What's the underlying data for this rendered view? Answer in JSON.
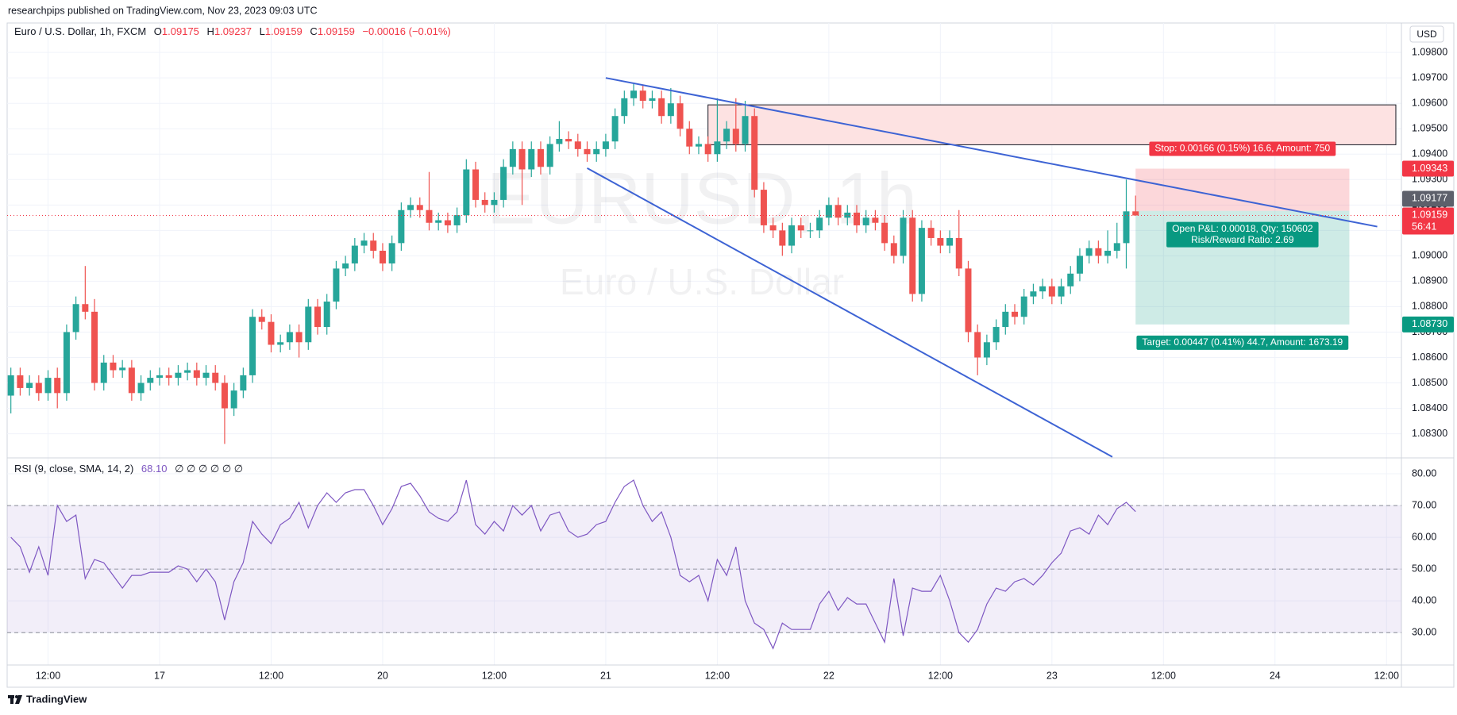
{
  "header": "researchpips published on TradingView.com, Nov 23, 2023 09:03 UTC",
  "footer": "TradingView",
  "chart_data": {
    "type": "candlestick",
    "symbol": "Euro / U.S. Dollar, 1h, FXCM",
    "legend": [
      {
        "key": "O",
        "value": "1.09175"
      },
      {
        "key": "H",
        "value": "1.09237"
      },
      {
        "key": "L",
        "value": "1.09159"
      },
      {
        "key": "C",
        "value": "1.09159"
      }
    ],
    "change": "−0.00016 (−0.01%)",
    "watermark": "EURUSD, 1h",
    "watermark_subtitle": "Euro / U.S. Dollar",
    "currency": "USD",
    "colors": {
      "up": "#26a69a",
      "down": "#ef5350"
    },
    "open": [
      1.0845,
      1.0853,
      1.0848,
      1.085,
      1.0846,
      1.0852,
      1.0846,
      1.087,
      1.0881,
      1.0878,
      1.085,
      1.0858,
      1.0855,
      1.0856,
      1.0846,
      1.085,
      1.0852,
      1.0853,
      1.0852,
      1.0854,
      1.0855,
      1.0852,
      1.0854,
      1.085,
      1.084,
      1.0847,
      1.0853,
      1.0876,
      1.0874,
      1.0865,
      1.0866,
      1.087,
      1.0866,
      1.088,
      1.0872,
      1.0882,
      1.0895,
      1.0897,
      1.0904,
      1.0906,
      1.0902,
      1.0897,
      1.0905,
      1.0918,
      1.092,
      1.0918,
      1.0913,
      1.0914,
      1.0912,
      1.0916,
      1.0934,
      1.0922,
      1.092,
      1.0922,
      1.0935,
      1.0942,
      1.0934,
      1.0942,
      1.0935,
      1.0944,
      1.0946,
      1.0945,
      1.0942,
      1.094,
      1.0942,
      1.0945,
      1.0955,
      1.0962,
      1.0965,
      1.0961,
      1.0962,
      1.0955,
      1.096,
      1.095,
      1.0943,
      1.0944,
      1.094,
      1.0945,
      1.095,
      1.0944,
      1.0955,
      1.0926,
      1.0912,
      1.091,
      1.0904,
      1.0912,
      1.091,
      1.091,
      1.0915,
      1.092,
      1.0915,
      1.0917,
      1.0912,
      1.0915,
      1.0913,
      1.0905,
      1.09,
      1.0915,
      1.0885,
      1.0911,
      1.0907,
      1.0904,
      1.0907,
      1.0895,
      1.087,
      1.086,
      1.0866,
      1.0872,
      1.0878,
      1.0876,
      1.0884,
      1.0886,
      1.0888,
      1.0884,
      1.0888,
      1.0893,
      1.09,
      1.0903,
      1.09,
      1.0902,
      1.0905,
      1.09175
    ],
    "high": [
      1.0856,
      1.0856,
      1.0853,
      1.0853,
      1.0855,
      1.0856,
      1.0873,
      1.0884,
      1.0896,
      1.0883,
      1.0861,
      1.0861,
      1.0859,
      1.0859,
      1.0853,
      1.0855,
      1.0856,
      1.0856,
      1.0857,
      1.0858,
      1.0858,
      1.0857,
      1.0857,
      1.0853,
      1.085,
      1.0856,
      1.0879,
      1.0879,
      1.0877,
      1.0869,
      1.0873,
      1.0873,
      1.0883,
      1.0883,
      1.0885,
      1.0898,
      1.09,
      1.0907,
      1.0909,
      1.0909,
      1.0905,
      1.0908,
      1.0921,
      1.0923,
      1.0923,
      1.0933,
      1.0917,
      1.0917,
      1.0919,
      1.0938,
      1.0937,
      1.0925,
      1.0925,
      1.0938,
      1.0945,
      1.0945,
      1.0945,
      1.0945,
      1.0947,
      1.0953,
      1.0949,
      1.0948,
      1.0945,
      1.0945,
      1.0948,
      1.0958,
      1.0965,
      1.0968,
      1.0967,
      1.0965,
      1.0965,
      1.0966,
      1.0963,
      1.0953,
      1.0947,
      1.0947,
      1.0962,
      1.0953,
      1.0962,
      1.0961,
      1.0958,
      1.0929,
      1.0915,
      1.0913,
      1.0915,
      1.0915,
      1.0913,
      1.0918,
      1.0923,
      1.0923,
      1.092,
      1.092,
      1.0918,
      1.0918,
      1.0916,
      1.0908,
      1.0918,
      1.0918,
      1.0914,
      1.0914,
      1.091,
      1.091,
      1.0918,
      1.0898,
      1.0873,
      1.0869,
      1.0875,
      1.0881,
      1.0881,
      1.0887,
      1.0889,
      1.0891,
      1.0891,
      1.0891,
      1.0896,
      1.0903,
      1.0906,
      1.0906,
      1.091,
      1.0913,
      1.093,
      1.09237
    ],
    "low": [
      1.0838,
      1.0845,
      1.0845,
      1.0843,
      1.0843,
      1.084,
      1.0843,
      1.0867,
      1.0875,
      1.0847,
      1.0847,
      1.0852,
      1.0852,
      1.0843,
      1.0843,
      1.0847,
      1.0849,
      1.0849,
      1.0849,
      1.0851,
      1.0849,
      1.0849,
      1.0847,
      1.0826,
      1.0837,
      1.0844,
      1.085,
      1.0871,
      1.0862,
      1.0862,
      1.0863,
      1.086,
      1.0863,
      1.0869,
      1.0869,
      1.0879,
      1.0892,
      1.0894,
      1.0901,
      1.0899,
      1.0894,
      1.0894,
      1.0902,
      1.0915,
      1.0915,
      1.091,
      1.091,
      1.0909,
      1.0909,
      1.0913,
      1.0919,
      1.0917,
      1.0917,
      1.0919,
      1.0932,
      1.092,
      1.0931,
      1.0932,
      1.0932,
      1.0941,
      1.0942,
      1.0939,
      1.0937,
      1.0937,
      1.0939,
      1.0942,
      1.0952,
      1.0959,
      1.0958,
      1.0958,
      1.0952,
      1.0952,
      1.0947,
      1.094,
      1.094,
      1.0937,
      1.0937,
      1.0942,
      1.0941,
      1.0941,
      1.0923,
      1.0909,
      1.0907,
      1.09,
      1.0901,
      1.0907,
      1.0907,
      1.0907,
      1.0912,
      1.0912,
      1.0912,
      1.0909,
      1.0909,
      1.091,
      1.0902,
      1.0897,
      1.0897,
      1.0882,
      1.0882,
      1.0904,
      1.0901,
      1.0901,
      1.0892,
      1.0866,
      1.0853,
      1.0857,
      1.0863,
      1.0869,
      1.0873,
      1.0873,
      1.0881,
      1.0883,
      1.0881,
      1.0881,
      1.0885,
      1.089,
      1.0897,
      1.0897,
      1.0897,
      1.0899,
      1.0895,
      1.09159
    ],
    "close": [
      1.0853,
      1.0848,
      1.085,
      1.0846,
      1.0852,
      1.0846,
      1.087,
      1.0881,
      1.0878,
      1.085,
      1.0858,
      1.0855,
      1.0856,
      1.0846,
      1.085,
      1.0852,
      1.0853,
      1.0852,
      1.0854,
      1.0855,
      1.0852,
      1.0854,
      1.085,
      1.084,
      1.0847,
      1.0853,
      1.0876,
      1.0874,
      1.0865,
      1.0866,
      1.087,
      1.0866,
      1.088,
      1.0872,
      1.0882,
      1.0895,
      1.0897,
      1.0904,
      1.0906,
      1.0902,
      1.0897,
      1.0905,
      1.0918,
      1.092,
      1.0918,
      1.0913,
      1.0914,
      1.0912,
      1.0916,
      1.0934,
      1.0922,
      1.092,
      1.0922,
      1.0935,
      1.0942,
      1.0934,
      1.0942,
      1.0935,
      1.0944,
      1.0946,
      1.0945,
      1.0942,
      1.094,
      1.0942,
      1.0945,
      1.0955,
      1.0962,
      1.0965,
      1.0961,
      1.0962,
      1.0955,
      1.096,
      1.095,
      1.0943,
      1.0944,
      1.094,
      1.0945,
      1.095,
      1.0944,
      1.0955,
      1.0926,
      1.0912,
      1.091,
      1.0904,
      1.0912,
      1.091,
      1.091,
      1.0915,
      1.092,
      1.0915,
      1.0917,
      1.0912,
      1.0915,
      1.0913,
      1.0905,
      1.09,
      1.0915,
      1.0885,
      1.0911,
      1.0907,
      1.0904,
      1.0907,
      1.0895,
      1.087,
      1.086,
      1.0866,
      1.0872,
      1.0878,
      1.0876,
      1.0884,
      1.0886,
      1.0888,
      1.0884,
      1.0888,
      1.0893,
      1.09,
      1.0903,
      1.09,
      1.0902,
      1.0905,
      1.09175,
      1.09159
    ],
    "xlim": [
      -0.4,
      149.6
    ],
    "xticks": [
      {
        "value": 4,
        "label": "12:00"
      },
      {
        "value": 16,
        "label": "17"
      },
      {
        "value": 28,
        "label": "12:00"
      },
      {
        "value": 40,
        "label": "20"
      },
      {
        "value": 52,
        "label": "12:00"
      },
      {
        "value": 64,
        "label": "21"
      },
      {
        "value": 76,
        "label": "12:00"
      },
      {
        "value": 88,
        "label": "22"
      },
      {
        "value": 100,
        "label": "12:00"
      },
      {
        "value": 112,
        "label": "23"
      },
      {
        "value": 124,
        "label": "12:00"
      },
      {
        "value": 136,
        "label": "24"
      },
      {
        "value": 148,
        "label": "12:00"
      }
    ],
    "ylim": [
      1.08205,
      1.09916
    ],
    "yticks": [
      {
        "value": 1.098,
        "label": "1.09800"
      },
      {
        "value": 1.097,
        "label": "1.09700"
      },
      {
        "value": 1.096,
        "label": "1.09600"
      },
      {
        "value": 1.095,
        "label": "1.09500"
      },
      {
        "value": 1.094,
        "label": "1.09400"
      },
      {
        "value": 1.093,
        "label": "1.09300"
      },
      {
        "value": 1.092,
        "label": "1.09200"
      },
      {
        "value": 1.091,
        "label": "1.09100"
      },
      {
        "value": 1.09,
        "label": "1.09000"
      },
      {
        "value": 1.089,
        "label": "1.08900"
      },
      {
        "value": 1.088,
        "label": "1.08800"
      },
      {
        "value": 1.087,
        "label": "1.08700"
      },
      {
        "value": 1.086,
        "label": "1.08600"
      },
      {
        "value": 1.085,
        "label": "1.08500"
      },
      {
        "value": 1.084,
        "label": "1.08400"
      },
      {
        "value": 1.083,
        "label": "1.08300"
      }
    ],
    "grid": true,
    "trendlines": [
      {
        "color": "#3d63d4",
        "points": [
          [
            64,
            1.097
          ],
          [
            147,
            1.09115
          ]
        ]
      },
      {
        "color": "#3d63d4",
        "points": [
          [
            62,
            1.09345
          ],
          [
            118.5,
            1.08209
          ]
        ]
      }
    ],
    "zone": {
      "x": [
        75,
        149
      ],
      "y": [
        1.09437,
        1.09594
      ],
      "color": "#fde2e2"
    },
    "position": {
      "x": [
        121,
        144
      ],
      "entry": 1.09177,
      "stop": 1.09343,
      "target": 1.0873,
      "stop_label": "Stop: 0.00166 (0.15%) 16.6, Amount: 750",
      "pnl_label": "Open P&L: 0.00018, Qty: 150602",
      "rr_label": "Risk/Reward Ratio: 2.69",
      "target_label": "Target: 0.00447 (0.41%) 44.7, Amount: 1673.19"
    },
    "price_tags": [
      {
        "value": 1.09343,
        "label": "1.09343",
        "color": "#f23645"
      },
      {
        "value": 1.09159,
        "label": "1.09159",
        "sub": "56:41",
        "color": "#f23645"
      },
      {
        "value": 1.09177,
        "label": "1.09177",
        "color": "#5d606b"
      },
      {
        "value": 1.0873,
        "label": "1.08730",
        "color": "#089981"
      }
    ],
    "rsi": {
      "title": "RSI (9, close, SMA, 14, 2)",
      "value_label": "68.10",
      "extras": "∅ ∅ ∅ ∅ ∅ ∅",
      "color": "#7e57c2",
      "values": [
        60,
        57,
        49,
        57,
        48,
        70,
        65,
        67,
        47,
        53,
        52,
        48,
        44,
        48,
        48,
        49,
        49,
        49,
        51,
        50,
        46,
        50,
        46,
        34,
        46,
        52,
        65,
        61,
        58,
        64,
        66,
        71,
        63,
        70,
        74,
        71,
        74,
        75,
        75,
        70,
        64,
        69,
        76,
        77,
        73,
        68,
        66,
        65,
        68,
        78,
        64,
        61,
        65,
        62,
        70,
        67,
        70,
        62,
        67,
        68,
        62,
        60,
        61,
        64,
        65,
        71,
        76,
        78,
        70,
        65,
        68,
        60,
        48,
        46,
        48,
        40,
        53,
        48,
        57,
        40,
        33,
        31,
        25,
        33,
        31,
        31,
        31,
        39,
        43,
        37,
        41,
        39,
        39,
        33,
        27,
        47,
        29,
        44,
        43,
        43,
        48,
        40,
        30,
        27,
        31,
        39,
        44,
        43,
        46,
        47,
        45,
        48,
        52,
        55,
        62,
        63,
        61,
        67,
        64,
        69,
        71,
        68.1
      ],
      "ylim": [
        19.8,
        85
      ],
      "yticks": [
        {
          "value": 80,
          "label": "80.00"
        },
        {
          "value": 70,
          "label": "70.00"
        },
        {
          "value": 60,
          "label": "60.00"
        },
        {
          "value": 50,
          "label": "50.00"
        },
        {
          "value": 40,
          "label": "40.00"
        },
        {
          "value": 30,
          "label": "30.00"
        }
      ],
      "levels": [
        70,
        50,
        30
      ]
    }
  }
}
